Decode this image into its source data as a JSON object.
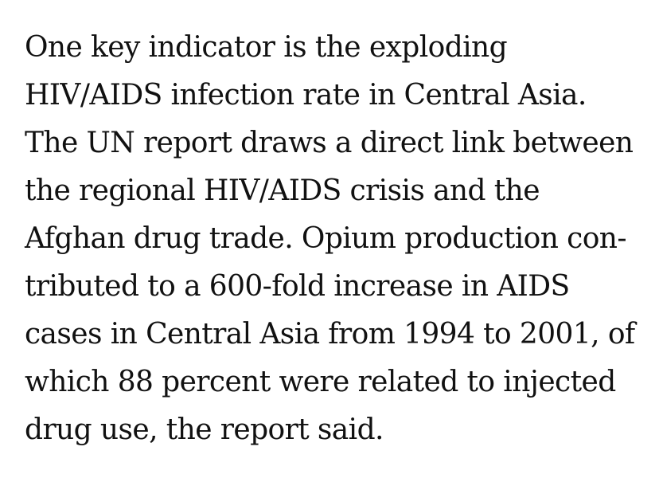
{
  "article": {
    "paragraph_lines": [
      "One key indicator is the exploding",
      "HIV/AIDS infection rate in Central Asia.",
      "The UN report draws a direct link between",
      "the regional HIV/AIDS crisis and the",
      "Afghan drug trade. Opium production con-",
      "tributed to a 600-fold increase in AIDS",
      "cases in Central Asia from 1994 to 2001, of",
      "which 88 percent were related to injected",
      "drug use, the report said."
    ]
  }
}
